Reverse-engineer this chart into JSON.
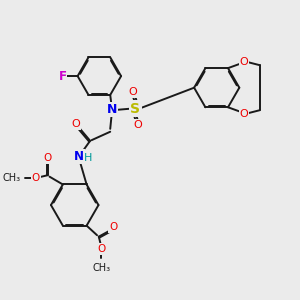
{
  "bg_color": "#ebebeb",
  "bond_color": "#1a1a1a",
  "bond_width": 1.4,
  "dbo": 0.035,
  "figsize": [
    3.0,
    3.0
  ],
  "dpi": 100,
  "colors": {
    "C": "#1a1a1a",
    "N": "#0000ee",
    "O": "#ee0000",
    "S": "#bbbb00",
    "F": "#cc00cc",
    "H": "#009999"
  },
  "xlim": [
    0,
    10
  ],
  "ylim": [
    0,
    10
  ]
}
